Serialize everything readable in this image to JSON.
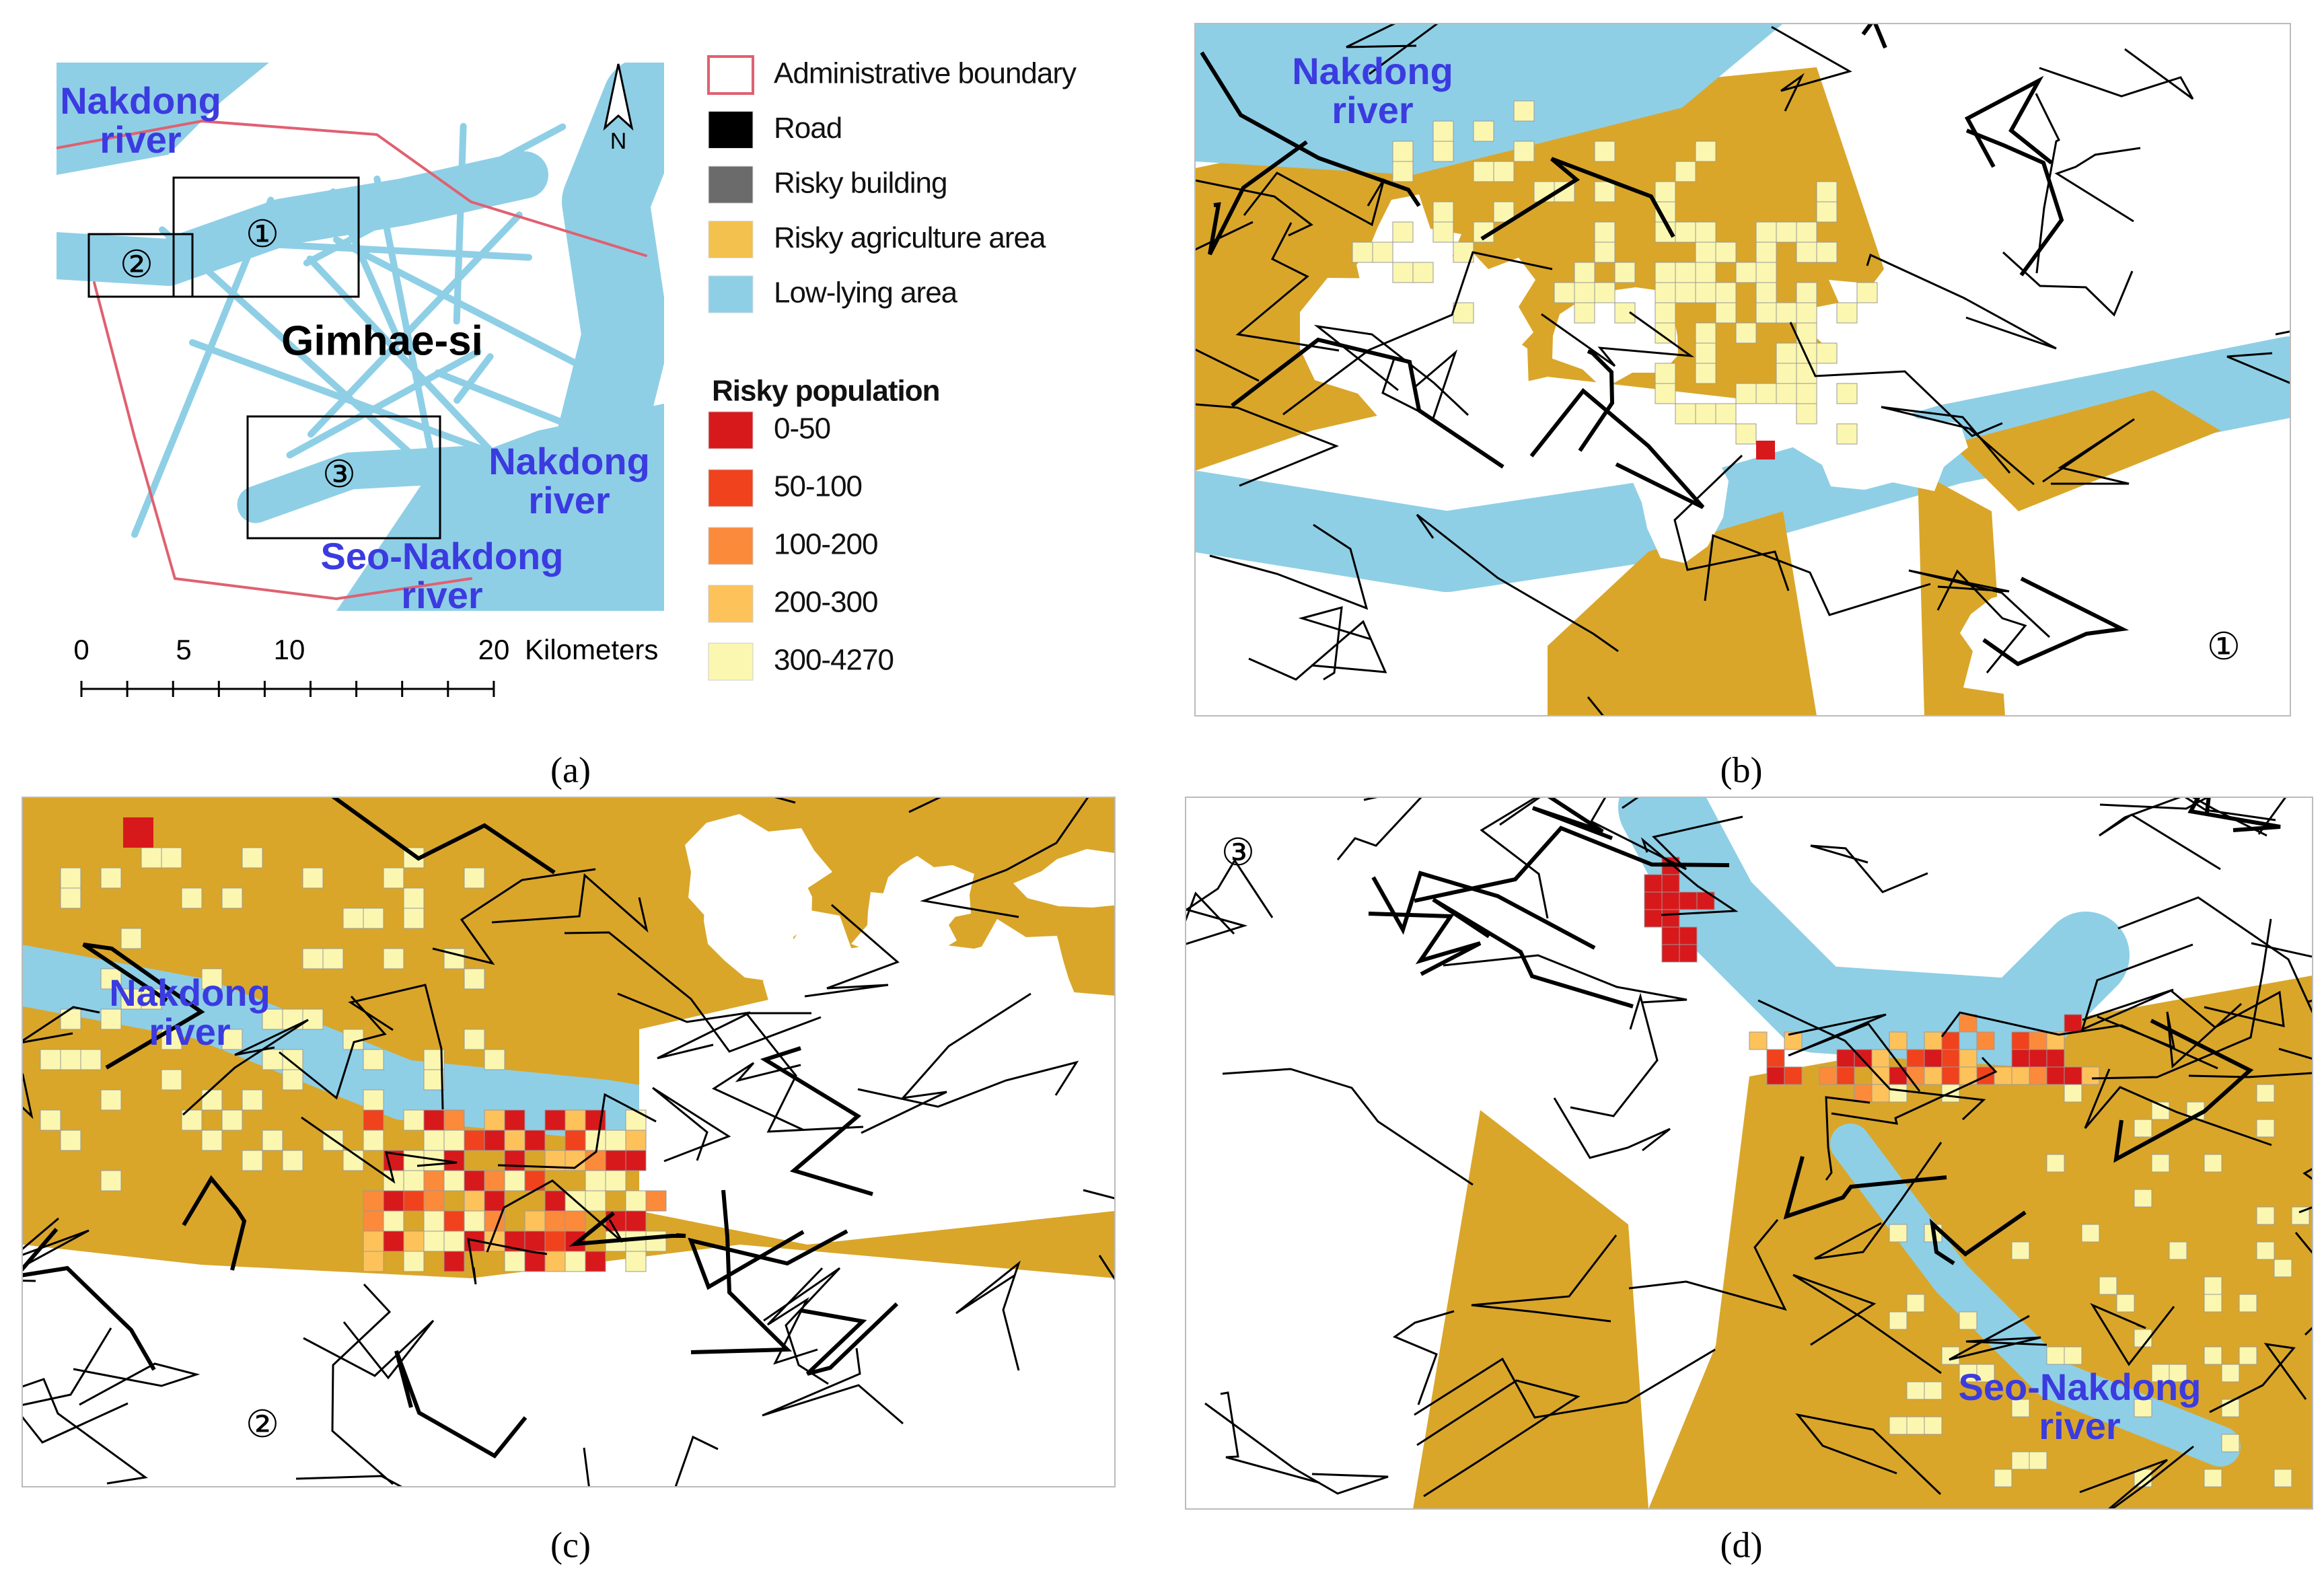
{
  "overview": {
    "place": "Gimhae-si",
    "north": "N",
    "water_labels": [
      [
        "Nakdong",
        "river"
      ],
      [
        "Nakdong",
        "river"
      ],
      [
        "Seo-Nakdong",
        "river"
      ]
    ],
    "zones": [
      "①",
      "②",
      "③"
    ],
    "scale": {
      "ticks": [
        "0",
        "5",
        "10",
        "20"
      ],
      "unit": "Kilometers"
    }
  },
  "legend": {
    "layers": [
      {
        "label": "Administrative boundary",
        "color": "#e06070"
      },
      {
        "label": "Road",
        "color": "#000000"
      },
      {
        "label": "Risky building",
        "color": "#6b6b6b"
      },
      {
        "label": "Risky agriculture area",
        "color": "#f2c14e"
      },
      {
        "label": "Low-lying area",
        "color": "#8ecfe6"
      }
    ],
    "population_title": "Risky population",
    "classes": [
      {
        "label": "0-50",
        "color": "#d7191c"
      },
      {
        "label": "50-100",
        "color": "#f0421c"
      },
      {
        "label": "100-200",
        "color": "#fb8a3a"
      },
      {
        "label": "200-300",
        "color": "#fdc25a"
      },
      {
        "label": "300-4270",
        "color": "#fbf7b0"
      }
    ]
  },
  "detail_maps": [
    {
      "zone": "①",
      "labels": [
        [
          "Nakdong",
          "river"
        ]
      ]
    },
    {
      "zone": "②",
      "labels": [
        [
          "Nakdong",
          "river"
        ]
      ]
    },
    {
      "zone": "③",
      "labels": [
        [
          "Seo-Nakdong",
          "river"
        ]
      ]
    }
  ],
  "captions": [
    "(a)",
    "(b)",
    "(c)",
    "(d)"
  ]
}
